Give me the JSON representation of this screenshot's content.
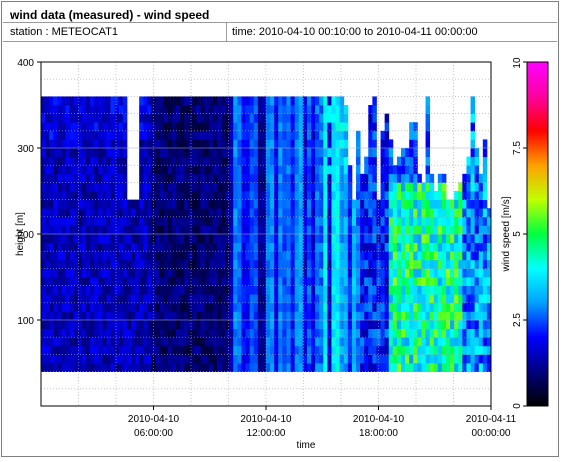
{
  "header": {
    "title": "wind data (measured) - wind speed",
    "station": "station : METEOCAT1",
    "time_range": "time: 2010-04-10 00:10:00 to 2010-04-11 00:00:00"
  },
  "chart_data": {
    "type": "heatmap",
    "xlabel": "time",
    "ylabel": "height [m]",
    "colorbar_label": "wind speed [m/s]",
    "x_range_hours": [
      0,
      24
    ],
    "ylim": [
      0,
      400
    ],
    "x_ticks": [
      {
        "hour": 6,
        "line1": "2010-04-10",
        "line2": "06:00:00"
      },
      {
        "hour": 12,
        "line1": "2010-04-10",
        "line2": "12:00:00"
      },
      {
        "hour": 18,
        "line1": "2010-04-10",
        "line2": "18:00:00"
      },
      {
        "hour": 24,
        "line1": "2010-04-11",
        "line2": "00:00:00"
      }
    ],
    "y_ticks": [
      100,
      200,
      300,
      400
    ],
    "colorbar_range": [
      0,
      10
    ],
    "colorbar_ticks": [
      "0",
      "2.5",
      "5",
      "7.5",
      "10"
    ],
    "colormap": [
      "#000000",
      "#00007f",
      "#0000ff",
      "#00a0ff",
      "#00ffff",
      "#00ff40",
      "#c0ff00",
      "#ffa000",
      "#ff0000",
      "#ff00a0",
      "#ff00ff"
    ],
    "height_bins_m": [
      40,
      360
    ],
    "grid": true,
    "description_approx": "Wind speed mostly 0.5-2 m/s (dark blue) before 15:00, rising to 2.5-6 m/s after 18:00 below 250 m"
  }
}
